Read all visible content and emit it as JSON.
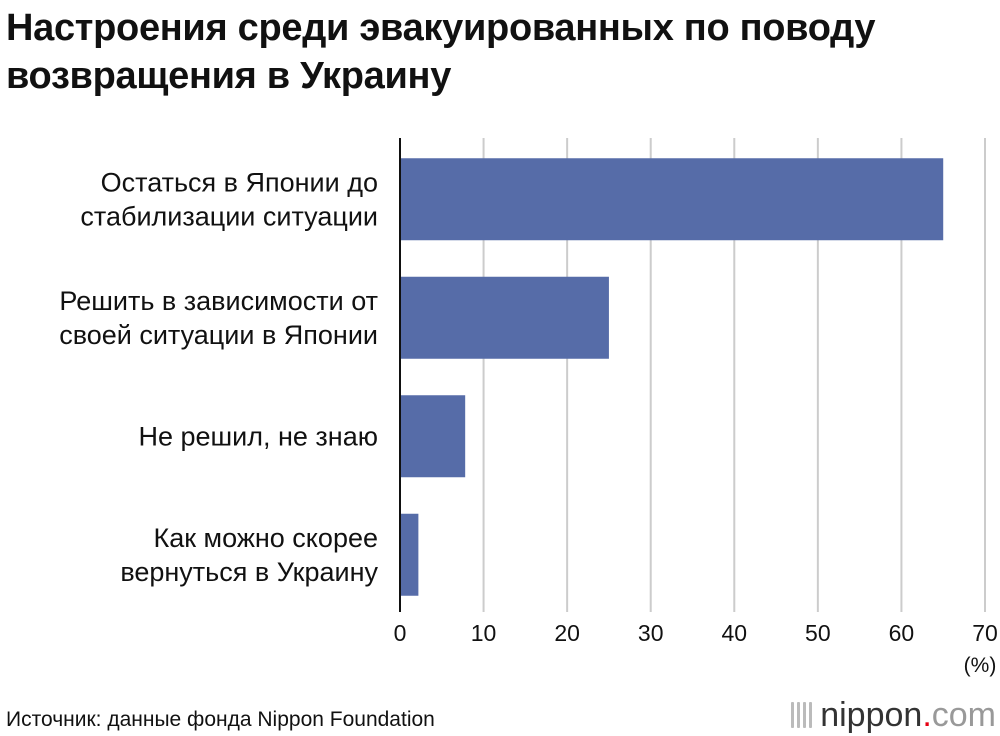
{
  "title": {
    "line1": "Настроения среди эвакуированных по поводу",
    "line2": "возвращения в Украину"
  },
  "chart_data": {
    "type": "bar",
    "orientation": "horizontal",
    "title": "Настроения среди эвакуированных по поводу возвращения в Украину",
    "categories": [
      [
        "Остаться в Японии до",
        "стабилизации ситуации"
      ],
      [
        "Решить в зависимости от",
        "своей ситуации в Японии"
      ],
      [
        "Не решил, не знаю"
      ],
      [
        "Как можно скорее",
        "вернуться в Украину"
      ]
    ],
    "values": [
      65,
      25,
      7.8,
      2.2
    ],
    "xlim": [
      0,
      70
    ],
    "xticks": [
      0,
      10,
      20,
      30,
      40,
      50,
      60,
      70
    ],
    "xlabel": "(%)",
    "grid": true,
    "bar_color": "#566ca8",
    "grid_color": "#cccccc"
  },
  "source": "Источник: данные фонда Nippon Foundation",
  "logo": {
    "name": "nippon",
    "dot": ".",
    "tld": "com",
    "accent": "#e60012"
  }
}
